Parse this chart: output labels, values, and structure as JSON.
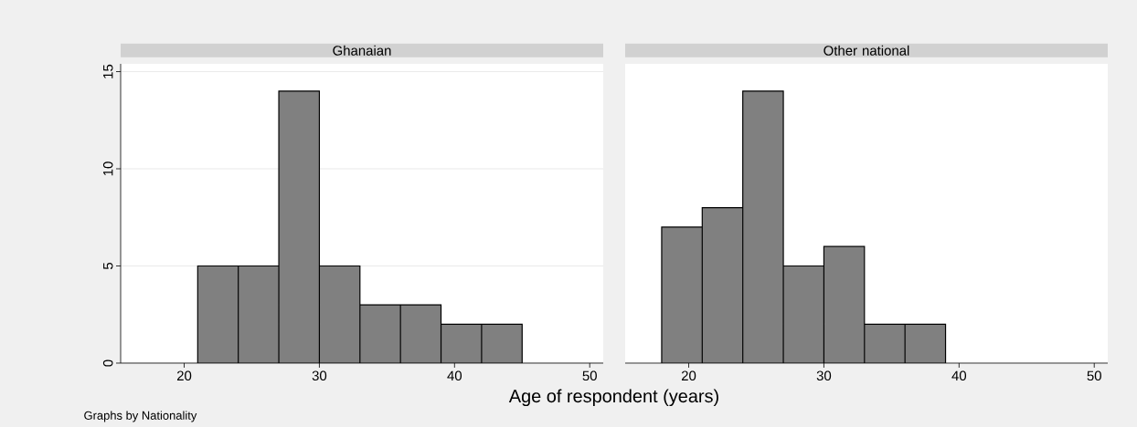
{
  "chart_data": [
    {
      "type": "histogram",
      "title": "Ghanaian",
      "xlabel": "Age of respondent (years)",
      "annotations": [
        "Graphs by Nationality"
      ],
      "bins": [
        21,
        24,
        27,
        30,
        33,
        36,
        39,
        42,
        45
      ],
      "values": [
        5,
        5,
        14,
        5,
        3,
        3,
        2,
        2
      ],
      "color": "#808080",
      "xlim": [
        15.3,
        51
      ],
      "ylim": [
        0,
        15.4
      ],
      "xticks": [
        20,
        30,
        40,
        50
      ],
      "yticks": [
        0,
        5,
        10,
        15
      ],
      "grid": "y"
    },
    {
      "type": "histogram",
      "title": "Other national",
      "bins": [
        18,
        21,
        24,
        27,
        30,
        33,
        36,
        39
      ],
      "values": [
        7,
        8,
        14,
        5,
        6,
        2,
        2
      ],
      "color": "#808080",
      "xlim": [
        15.3,
        51
      ],
      "ylim": [
        0,
        15.4
      ],
      "xticks": [
        20,
        30,
        40,
        50
      ],
      "yticks": [
        0,
        5,
        10,
        15
      ],
      "grid": "y",
      "tick_labels": "x"
    }
  ]
}
